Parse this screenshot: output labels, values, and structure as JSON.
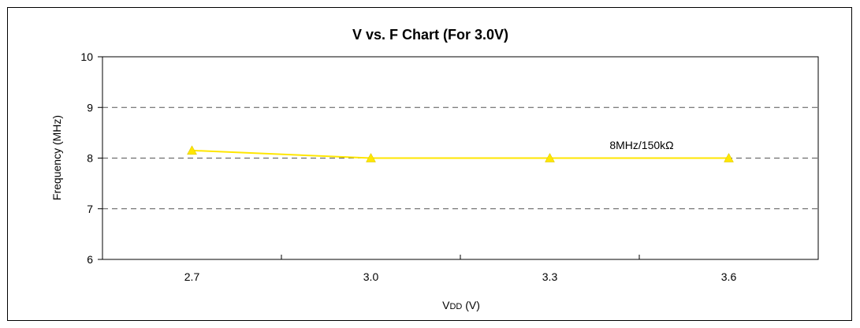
{
  "chart_data": {
    "type": "line",
    "title": "V vs. F Chart (For 3.0V)",
    "xlabel_main": "V",
    "xlabel_sub": "DD",
    "xlabel_unit": " (V)",
    "ylabel": "Frequency (MHz)",
    "categories": [
      "2.7",
      "3.0",
      "3.3",
      "3.6"
    ],
    "ylim": [
      6,
      10
    ],
    "yticks": [
      "6",
      "7",
      "8",
      "9",
      "10"
    ],
    "grid": "horizontal dashed",
    "series": [
      {
        "values": [
          8.15,
          8.0,
          8.0,
          8.0
        ],
        "color": "#FFE600",
        "marker": "triangle",
        "label": "8MHz/150kΩ"
      }
    ]
  }
}
